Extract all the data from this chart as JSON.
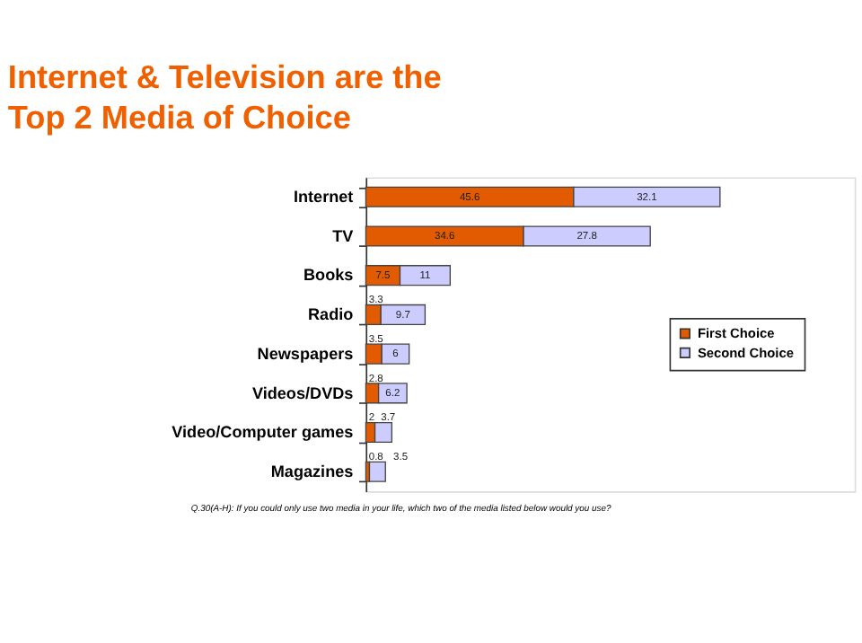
{
  "chart_data": {
    "type": "bar",
    "orientation": "horizontal",
    "stacked": true,
    "title": [
      "Internet & Television are the",
      "Top 2 Media of Choice"
    ],
    "categories": [
      "Internet",
      "TV",
      "Books",
      "Radio",
      "Newspapers",
      "Videos/DVDs",
      "Video/Computer games",
      "Magazines"
    ],
    "series": [
      {
        "name": "First Choice",
        "color": "#e35b00",
        "values": [
          45.6,
          34.6,
          7.5,
          3.3,
          3.5,
          2.8,
          2,
          0.8
        ],
        "value_labels": [
          "45.6",
          "34.6",
          "7.5",
          "3.3",
          "3.5",
          "2.8",
          "2",
          "0.8"
        ]
      },
      {
        "name": "Second Choice",
        "color": "#ccccff",
        "values": [
          32.1,
          27.8,
          11,
          9.7,
          6,
          6.2,
          3.7,
          3.5
        ],
        "value_labels": [
          "32.1",
          "27.8",
          "11",
          "9.7",
          "6",
          "6.2",
          "3.7",
          "3.5"
        ]
      }
    ],
    "legend": "right",
    "tick_labels": "y",
    "annotations": [
      "Q.30(A-H): If you could only use two media in your life, which two of the media listed below would you use?"
    ]
  }
}
